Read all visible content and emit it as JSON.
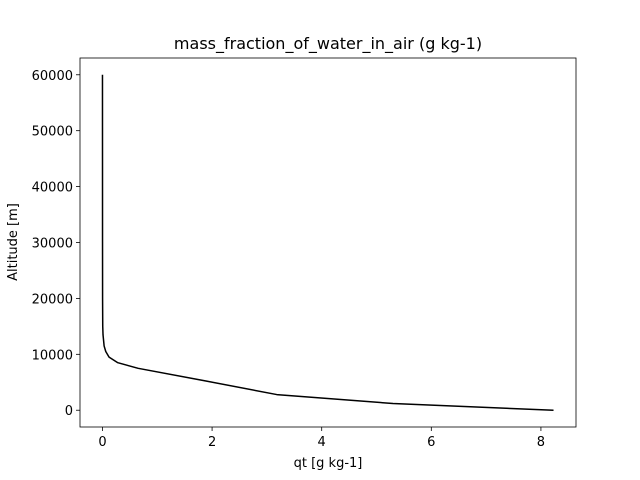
{
  "chart_data": {
    "type": "line",
    "title": "mass_fraction_of_water_in_air (g kg-1)",
    "xlabel": "qt [g kg-1]",
    "ylabel": "Altitude [m]",
    "xlim": [
      -0.41,
      8.64
    ],
    "ylim": [
      -3000,
      63000
    ],
    "xticks": [
      0,
      2,
      4,
      6,
      8
    ],
    "yticks": [
      0,
      10000,
      20000,
      30000,
      40000,
      50000,
      60000
    ],
    "grid": false,
    "legend": "none",
    "line_color": "#000000",
    "series": [
      {
        "x": [
          8.23,
          5.3,
          3.18,
          1.9,
          0.65,
          0.28,
          0.12,
          0.06,
          0.03,
          0.02,
          0.01,
          0.005,
          0.002,
          0.001,
          0.0005,
          0.0
        ],
        "y": [
          0,
          1200,
          2800,
          5200,
          7500,
          8500,
          9500,
          10500,
          11500,
          12500,
          13500,
          15000,
          20000,
          30000,
          45000,
          60000
        ]
      }
    ]
  }
}
